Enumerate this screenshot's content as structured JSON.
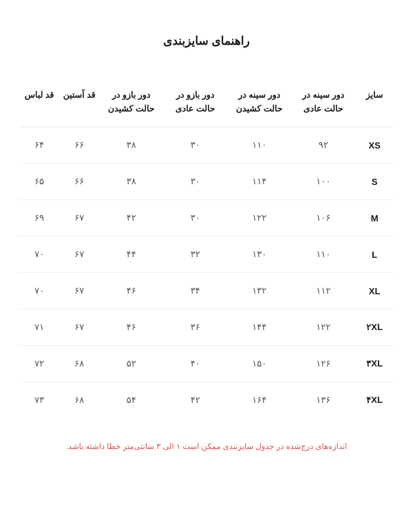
{
  "title": "راهنمای سایزبندی",
  "columns": [
    "سایز",
    "دور سینه در حالت عادی",
    "دور سینه در حالت کشیدن",
    "دور بازو در حالت عادی",
    "دور بازو در حالت کشیدن",
    "قد آستین",
    "قد لباس"
  ],
  "rows": [
    {
      "size": "XS",
      "c1": "۹۲",
      "c2": "۱۱۰",
      "c3": "۳۰",
      "c4": "۳۸",
      "c5": "۶۶",
      "c6": "۶۴"
    },
    {
      "size": "S",
      "c1": "۱۰۰",
      "c2": "۱۱۴",
      "c3": "۳۰",
      "c4": "۳۸",
      "c5": "۶۶",
      "c6": "۶۵"
    },
    {
      "size": "M",
      "c1": "۱۰۶",
      "c2": "۱۲۲",
      "c3": "۳۰",
      "c4": "۴۲",
      "c5": "۶۷",
      "c6": "۶۹"
    },
    {
      "size": "L",
      "c1": "۱۱۰",
      "c2": "۱۳۰",
      "c3": "۳۲",
      "c4": "۴۴",
      "c5": "۶۷",
      "c6": "۷۰"
    },
    {
      "size": "XL",
      "c1": "۱۱۲",
      "c2": "۱۳۲",
      "c3": "۳۴",
      "c4": "۴۶",
      "c5": "۶۷",
      "c6": "۷۰"
    },
    {
      "size": "۲XL",
      "c1": "۱۲۲",
      "c2": "۱۴۴",
      "c3": "۳۶",
      "c4": "۴۶",
      "c5": "۶۷",
      "c6": "۷۱"
    },
    {
      "size": "۳XL",
      "c1": "۱۲۶",
      "c2": "۱۵۰",
      "c3": "۴۰",
      "c4": "۵۲",
      "c5": "۶۸",
      "c6": "۷۲"
    },
    {
      "size": "۴XL",
      "c1": "۱۳۶",
      "c2": "۱۶۴",
      "c3": "۴۲",
      "c4": "۵۴",
      "c5": "۶۸",
      "c6": "۷۳"
    }
  ],
  "footnote": "اندازه‌های درج‌شده در جدول سایزبندی ممکن است ۱ الی ۳ سانتی‌متر خطا داشته باشد.",
  "styling": {
    "background_color": "#ffffff",
    "title_fontsize": 17,
    "title_color": "#1a1a1a",
    "header_fontsize": 12.5,
    "header_color": "#1a1a1a",
    "cell_fontsize": 13,
    "cell_color": "#555555",
    "border_color": "#f0f0f0",
    "footnote_color": "#d9534f",
    "footnote_fontsize": 11.5
  }
}
